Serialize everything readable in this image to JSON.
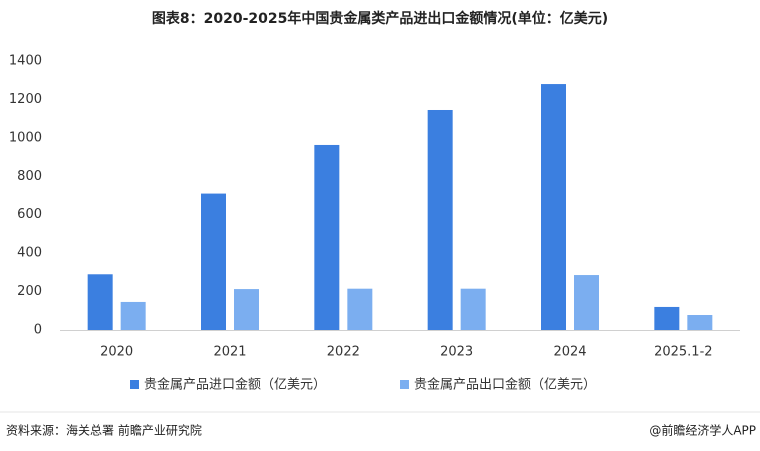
{
  "chart_data": {
    "type": "bar",
    "title": "图表8：2020-2025年中国贵金属类产品进出口金额情况(单位：亿美元)",
    "categories": [
      "2020",
      "2021",
      "2022",
      "2023",
      "2024",
      "2025.1-2"
    ],
    "series": [
      {
        "name": "贵金属产品进口金额（亿美元）",
        "color": "#3b7fe0",
        "values": [
          290,
          710,
          963,
          1145,
          1280,
          120
        ]
      },
      {
        "name": "贵金属产品出口金额（亿美元）",
        "color": "#7baef0",
        "values": [
          146,
          213,
          215,
          215,
          286,
          78
        ]
      }
    ],
    "ylim": [
      0,
      1400
    ],
    "yticks": [
      0,
      200,
      400,
      600,
      800,
      1000,
      1200,
      1400
    ],
    "grid": false,
    "legend": "bottom"
  },
  "footer": {
    "source": "资料来源：海关总署 前瞻产业研究院",
    "credit": "@前瞻经济学人APP"
  }
}
